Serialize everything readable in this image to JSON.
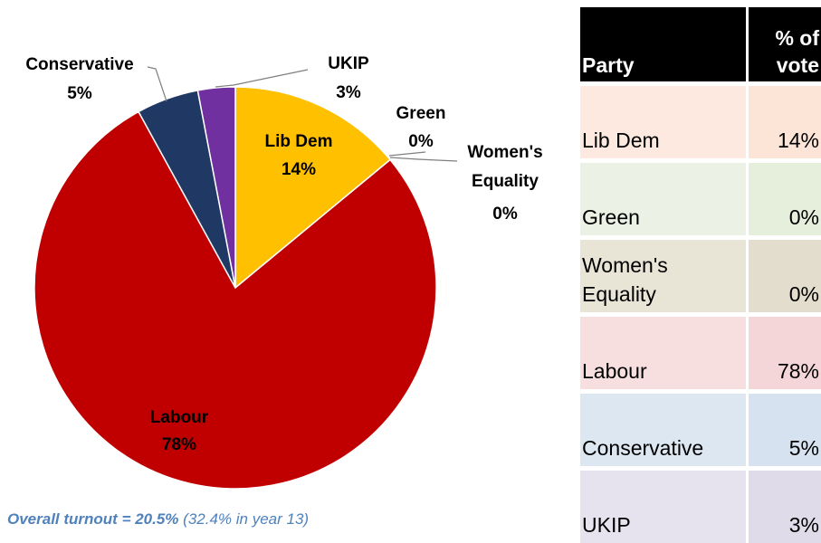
{
  "chart_data": {
    "type": "pie",
    "slices": [
      {
        "name": "Lib Dem",
        "value": 14,
        "label_value": "14%",
        "color": "#ffc000"
      },
      {
        "name": "Green",
        "value": 0,
        "label_value": "0%",
        "color": "#00b050"
      },
      {
        "name": "Women's Equality",
        "value": 0,
        "label_value": "0%",
        "color": "#7f7f7f"
      },
      {
        "name": "Labour",
        "value": 78,
        "label_value": "78%",
        "color": "#c00000"
      },
      {
        "name": "Conservative",
        "value": 5,
        "label_value": "5%",
        "color": "#1f3864"
      },
      {
        "name": "UKIP",
        "value": 3,
        "label_value": "3%",
        "color": "#7030a0"
      }
    ],
    "labels": {
      "lib_dem": [
        "Lib Dem",
        "14%"
      ],
      "green": [
        "Green",
        "0%"
      ],
      "womens_equality": [
        "Women's",
        "Equality",
        "0%"
      ],
      "labour": [
        "Labour",
        "78%"
      ],
      "conservative": [
        "Conservative",
        "5%"
      ],
      "ukip": [
        "UKIP",
        "3%"
      ]
    }
  },
  "turnout": {
    "main": "Overall turnout = 20.5%",
    "note": "(32.4% in year 13)"
  },
  "table": {
    "headers": {
      "party": "Party",
      "pct_line1": "% of",
      "pct_line2": "vote"
    },
    "rows": [
      {
        "party": "Lib Dem",
        "pct": "14%",
        "bg": "#fde9df",
        "bg2": "#fce4d6"
      },
      {
        "party": "Green",
        "pct": "0%",
        "bg": "#ebf1e4",
        "bg2": "#e6eedc"
      },
      {
        "party_line1": "Women's",
        "party_line2": "Equality",
        "pct": "0%",
        "bg": "#e8e4d6",
        "bg2": "#e2ddcc"
      },
      {
        "party": "Labour",
        "pct": "78%",
        "bg": "#f7dfe0",
        "bg2": "#f4d6d8"
      },
      {
        "party": "Conservative",
        "pct": "5%",
        "bg": "#dde7f2",
        "bg2": "#d6e2ef"
      },
      {
        "party": "UKIP",
        "pct": "3%",
        "bg": "#e6e2ee",
        "bg2": "#dfdbe9"
      }
    ]
  }
}
